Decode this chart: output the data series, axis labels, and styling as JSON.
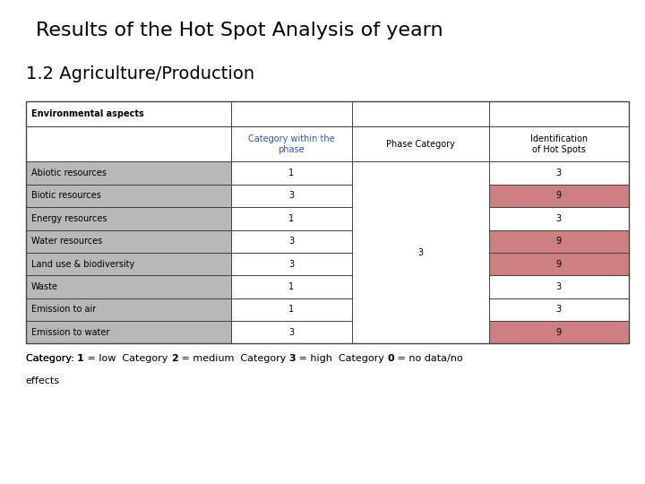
{
  "title": "Results of the Hot Spot Analysis of yearn",
  "subtitle": "1.2 Agriculture/Production",
  "header_row": [
    "",
    "Category within the\nphase",
    "Phase Category",
    "Identification\nof Hot Spots"
  ],
  "rows": [
    {
      "label": "Abiotic resources",
      "category": "1",
      "identification": "3",
      "id_color": "#ffffff"
    },
    {
      "label": "Biotic resources",
      "category": "3",
      "identification": "9",
      "id_color": "#cd8080"
    },
    {
      "label": "Energy resources",
      "category": "1",
      "identification": "3",
      "id_color": "#ffffff"
    },
    {
      "label": "Water resources",
      "category": "3",
      "identification": "9",
      "id_color": "#cd8080"
    },
    {
      "label": "Land use & biodiversity",
      "category": "3",
      "identification": "9",
      "id_color": "#cd8080"
    },
    {
      "label": "Waste",
      "category": "1",
      "identification": "3",
      "id_color": "#ffffff"
    },
    {
      "label": "Emission to air",
      "category": "1",
      "identification": "3",
      "id_color": "#ffffff"
    },
    {
      "label": "Emission to water",
      "category": "3",
      "identification": "9",
      "id_color": "#cd8080"
    }
  ],
  "phase_category_value": "3",
  "label_bg_color": "#b8b8b8",
  "header_text_color": "#3355bb",
  "grid_color": "#444444",
  "title_fontsize": 16,
  "subtitle_fontsize": 14,
  "table_fontsize": 7,
  "header_fontsize": 7,
  "footnote_fontsize": 8
}
